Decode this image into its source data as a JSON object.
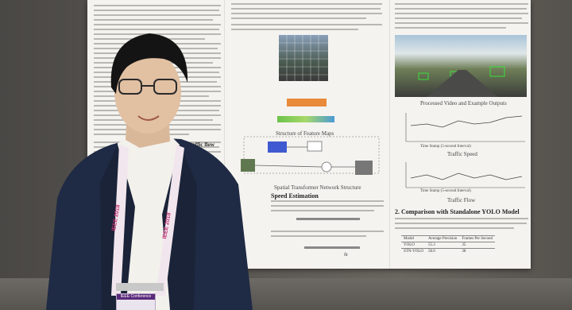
{
  "poster": {
    "left_column": {
      "heading_fragment": "Traffic flow"
    },
    "middle_column": {
      "figure1_caption": "Structure of Feature Maps",
      "figure2_caption": "Spatial Transformer Network Structure",
      "section_heading": "Speed Estimation",
      "equation_label": "δt"
    },
    "right_column": {
      "video_caption": "Processed Video and Example Outputs",
      "chart1_title": "Traffic Speed",
      "chart1_xlabel": "Time Stamp (5-second Interval)",
      "chart2_title": "Traffic Flow",
      "chart2_xlabel": "Time Stamp (5-second Interval)",
      "section2_heading": "2. Comparison with Standalone YOLO Model",
      "table": {
        "headers": [
          "Model",
          "Average Precision",
          "Frames Per Second"
        ],
        "rows": [
          [
            "YOLO",
            "55.3",
            "35"
          ],
          [
            "STN-YOLO",
            "58.0",
            "38"
          ]
        ]
      }
    }
  },
  "lanyard": {
    "text": "IEEE 2018",
    "badge_header": "IEEE Conference"
  },
  "colors": {
    "background_wall": "#55524d",
    "poster_paper": "#f4f3ef",
    "jacket": "#1f2a44",
    "shirt": "#f3f1ec",
    "lanyard": "#f2e6ee",
    "badge_header": "#5a2a7a"
  }
}
